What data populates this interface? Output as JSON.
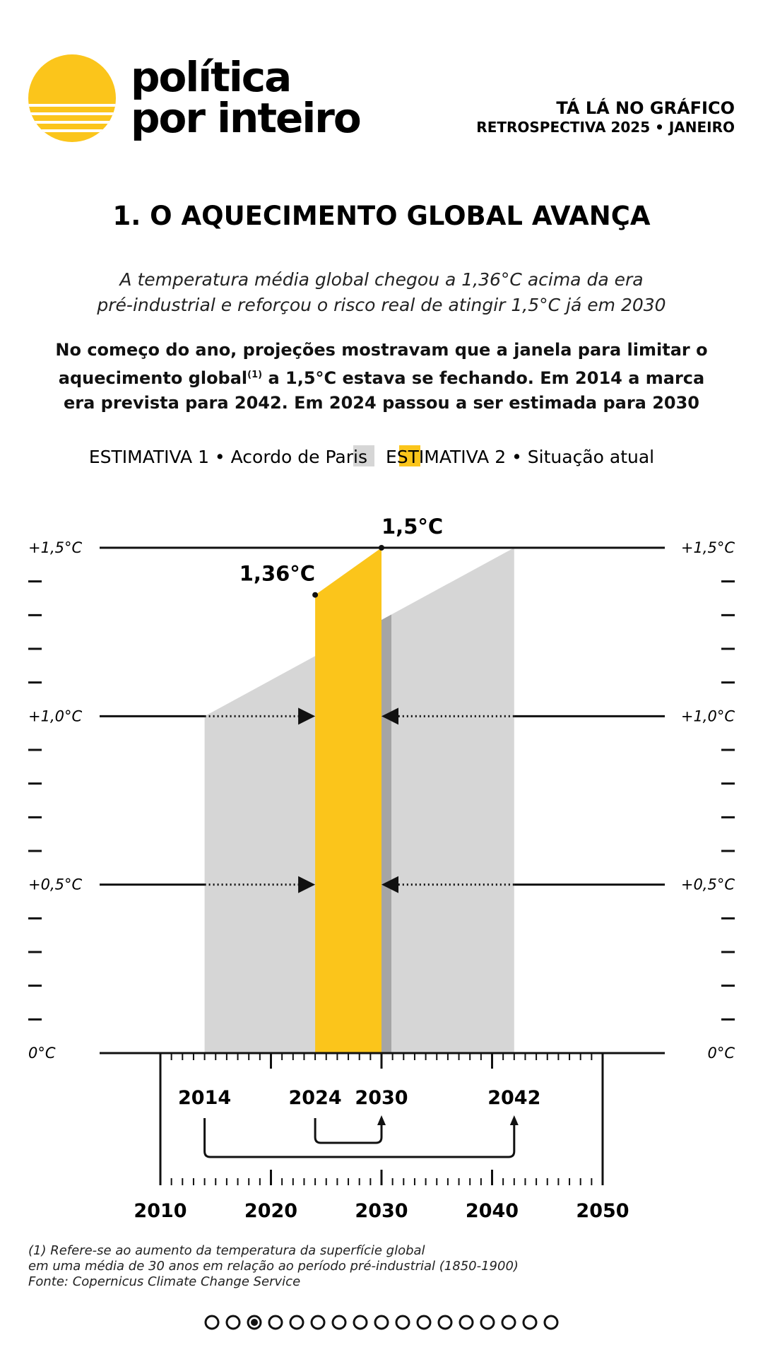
{
  "header": {
    "logo": [
      "política",
      "por inteiro"
    ],
    "kicker": "TÁ LÁ NO GRÁFICO",
    "edition": "RETROSPECTIVA 2025 • JANEIRO"
  },
  "chart_data": {
    "type": "area",
    "title": "1. O AQUECIMENTO GLOBAL AVANÇA",
    "subtitle": [
      "A temperatura média global chegou a 1,36°C acima da era",
      "pré-industrial e reforçou o risco real de atingir 1,5°C já em 2030"
    ],
    "description": [
      "No começo do ano, projeções mostravam que a janela para limitar o aquecimento global",
      "(1)",
      " a 1,5°C estava se fechando. Em 2014 a marca era prevista para 2042. Em 2024 passou a ser estimada para 2030"
    ],
    "series": [
      {
        "name": "ESTIMATIVA 1 • Acordo de Paris",
        "color": "#d6d6d6",
        "x": [
          2014,
          2042
        ],
        "values": [
          1.0,
          1.5
        ]
      },
      {
        "name": "ESTIMATIVA 2 • Situação atual",
        "color": "#fbc51b",
        "x": [
          2024,
          2030
        ],
        "values": [
          1.36,
          1.5
        ],
        "value_labels": [
          "1,36°C",
          "1,5°C"
        ]
      }
    ],
    "xlim": [
      2010,
      2050
    ],
    "xticks": [
      2010,
      2020,
      2030,
      2040,
      2050
    ],
    "ylim": [
      0,
      1.5
    ],
    "yticks": [
      {
        "value": 0,
        "label": "0°C"
      },
      {
        "value": 0.5,
        "label": "+0,5°C"
      },
      {
        "value": 1.0,
        "label": "+1,0°C"
      },
      {
        "value": 1.5,
        "label": "+1,5°C"
      }
    ],
    "minor_yticks": [
      0.1,
      0.2,
      0.3,
      0.4,
      0.6,
      0.7,
      0.8,
      0.9,
      1.1,
      1.2,
      1.3,
      1.4
    ]
  },
  "footnote": [
    "(1) Refere-se ao aumento da temperatura da superfície global",
    "em uma média de 30 anos em relação ao período pré-industrial (1850-1900)",
    "Fonte: Copernicus Climate Change Service"
  ],
  "pagination": {
    "count": 17,
    "active": 2
  }
}
